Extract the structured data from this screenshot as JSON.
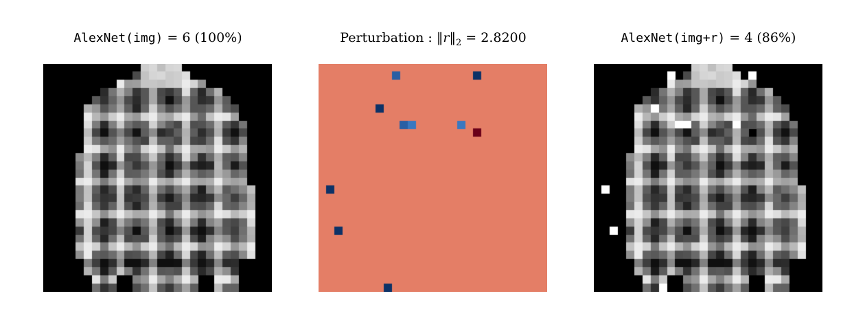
{
  "panels": {
    "original": {
      "title_model": "AlexNet(img)",
      "title_eq": " = ",
      "title_value": "6",
      "title_conf": " (100%)"
    },
    "perturbation": {
      "title_prefix": "Perturbation : ",
      "title_norm_lhs": "‖r‖",
      "title_norm_sub": "2",
      "title_eq": " = ",
      "title_value": "2.8200"
    },
    "adversarial": {
      "title_model": "AlexNet(img+r)",
      "title_eq": " = ",
      "title_value": "4",
      "title_conf": " (86%)"
    }
  },
  "colors": {
    "perturbation_background": "#e47e66",
    "perturbation_dark_blue": "#0d3267",
    "perturbation_mid_blue": "#2a5fa4",
    "perturbation_light_blue": "#3a78c0",
    "perturbation_dark_red": "#6a0019",
    "image_background": "#000000"
  },
  "image": {
    "grid_size": 28,
    "perturbation_pixels": [
      {
        "row": 1,
        "col": 9,
        "color": "perturbation_mid_blue"
      },
      {
        "row": 1,
        "col": 19,
        "color": "perturbation_dark_blue"
      },
      {
        "row": 5,
        "col": 7,
        "color": "perturbation_dark_blue"
      },
      {
        "row": 7,
        "col": 10,
        "color": "perturbation_mid_blue"
      },
      {
        "row": 7,
        "col": 11,
        "color": "perturbation_light_blue"
      },
      {
        "row": 7,
        "col": 17,
        "color": "perturbation_light_blue"
      },
      {
        "row": 8,
        "col": 19,
        "color": "perturbation_dark_red"
      },
      {
        "row": 15,
        "col": 1,
        "color": "perturbation_dark_blue"
      },
      {
        "row": 20,
        "col": 2,
        "color": "perturbation_dark_blue"
      },
      {
        "row": 27,
        "col": 8,
        "color": "perturbation_dark_blue"
      }
    ]
  }
}
